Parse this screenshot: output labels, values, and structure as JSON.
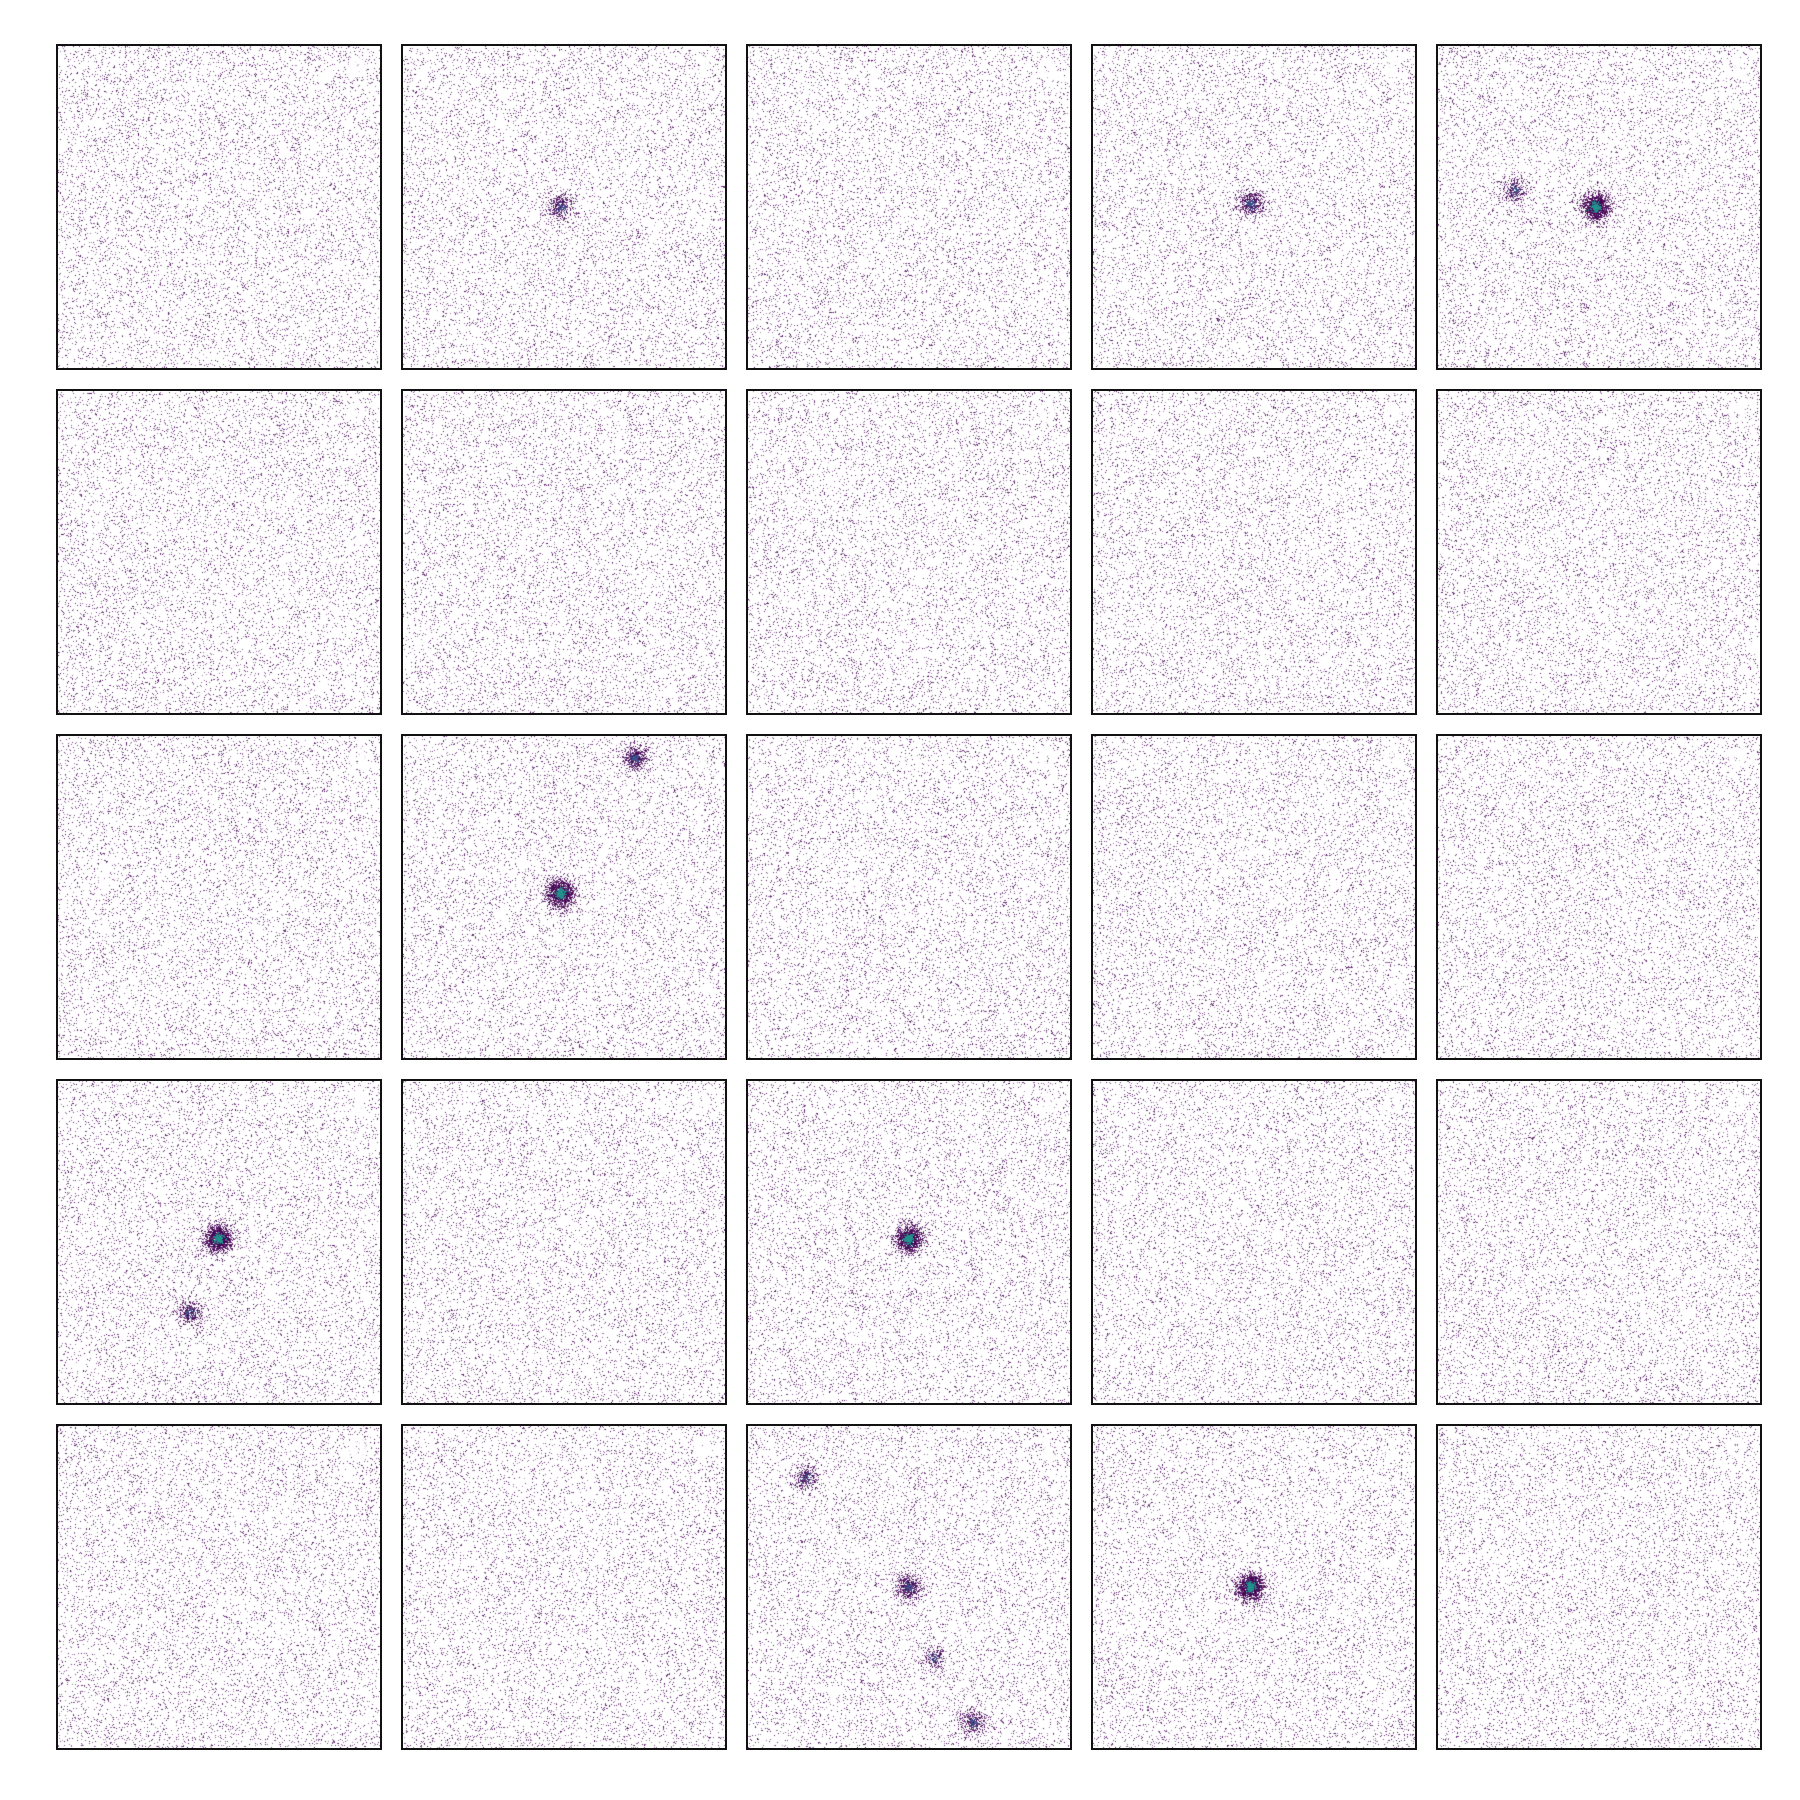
{
  "figure": {
    "grid": {
      "rows": 5,
      "cols": 5
    },
    "colormap": [
      "#440154",
      "#3b528b",
      "#21918c"
    ],
    "panels": [
      {
        "label": "0",
        "sources": []
      },
      {
        "label": "1",
        "sources": [
          {
            "u": 0.49,
            "v": 0.5,
            "strength": 0.25
          }
        ]
      },
      {
        "label": "0",
        "sources": []
      },
      {
        "label": "1",
        "sources": [
          {
            "u": 0.49,
            "v": 0.49,
            "strength": 0.35
          }
        ]
      },
      {
        "label": "1",
        "sources": [
          {
            "u": 0.49,
            "v": 0.5,
            "strength": 0.9
          },
          {
            "u": 0.24,
            "v": 0.45,
            "strength": 0.2
          }
        ]
      },
      {
        "label": "0",
        "sources": []
      },
      {
        "label": "0",
        "sources": []
      },
      {
        "label": "0",
        "sources": []
      },
      {
        "label": "0",
        "sources": []
      },
      {
        "label": "0",
        "sources": []
      },
      {
        "label": "0",
        "sources": []
      },
      {
        "label": "1",
        "sources": [
          {
            "u": 0.49,
            "v": 0.49,
            "strength": 0.9
          },
          {
            "u": 0.72,
            "v": 0.07,
            "strength": 0.35
          }
        ]
      },
      {
        "label": "0",
        "sources": []
      },
      {
        "label": "0",
        "sources": []
      },
      {
        "label": "0",
        "sources": []
      },
      {
        "label": "1",
        "sources": [
          {
            "u": 0.5,
            "v": 0.49,
            "strength": 0.9
          },
          {
            "u": 0.41,
            "v": 0.72,
            "strength": 0.25
          }
        ]
      },
      {
        "label": "0",
        "sources": []
      },
      {
        "label": "1",
        "sources": [
          {
            "u": 0.5,
            "v": 0.49,
            "strength": 0.95
          }
        ]
      },
      {
        "label": "0",
        "sources": []
      },
      {
        "label": "0",
        "sources": []
      },
      {
        "label": "0",
        "sources": []
      },
      {
        "label": "0",
        "sources": []
      },
      {
        "label": "1",
        "sources": [
          {
            "u": 0.5,
            "v": 0.5,
            "strength": 0.35
          },
          {
            "u": 0.18,
            "v": 0.16,
            "strength": 0.2
          },
          {
            "u": 0.58,
            "v": 0.72,
            "strength": 0.15
          },
          {
            "u": 0.7,
            "v": 0.92,
            "strength": 0.25
          }
        ]
      },
      {
        "label": "1",
        "sources": [
          {
            "u": 0.49,
            "v": 0.5,
            "strength": 0.95
          }
        ]
      },
      {
        "label": "0",
        "sources": []
      }
    ]
  }
}
